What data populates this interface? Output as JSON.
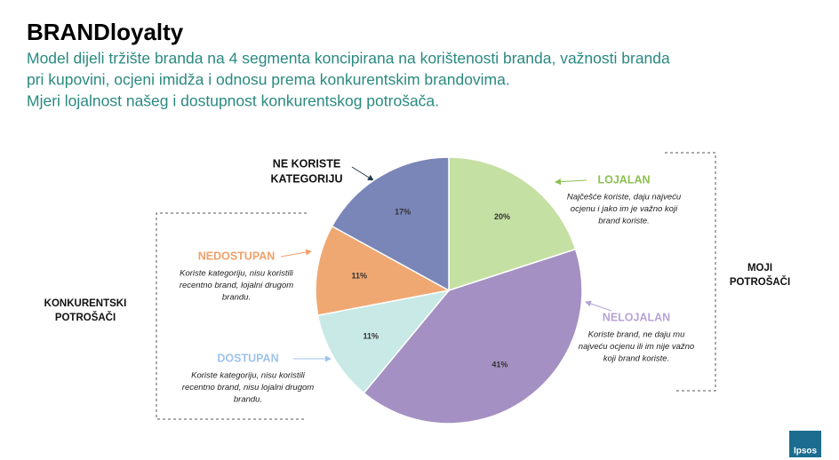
{
  "chart_data": {
    "type": "pie",
    "title": "BRANDloyalty",
    "subtitle": [
      "Model dijeli tržište branda na 4 segmenta koncipirana na korištenosti branda, važnosti branda",
      "pri kupovini, ocjeni imidža i odnosu prema konkurentskim brandovima.",
      "Mjeri lojalnost našeg i dostupnost konkurentskog potrošača."
    ],
    "categories": [
      [
        "LOJALAN"
      ],
      [
        "NELOJALAN"
      ],
      [
        "DOSTUPAN"
      ],
      [
        "NEDOSTUPAN"
      ],
      [
        "NE KORISTE",
        "KATEGORIJU"
      ]
    ],
    "values": [
      20,
      41,
      11,
      11,
      17
    ],
    "value_labels": [
      "20%",
      "41%",
      "11%",
      "11%",
      "17%"
    ],
    "colors": [
      "#c5e0a3",
      "#a490c2",
      "#c8e9e6",
      "#f0a873",
      "#7a86b8"
    ],
    "label_colors": [
      "#8cc152",
      "#b7a4d6",
      "#9ec3ec",
      "#f2a06a",
      "#111111"
    ],
    "descriptions": [
      [
        "Najčešće koriste, daju najveću",
        "ocjenu i jako im je važno koji",
        "brand koriste."
      ],
      [
        "Koriste brand, ne daju mu",
        "najveću ocjenu ili im nije važno",
        "koji brand koriste."
      ],
      [
        "Koriste kategoriju, nisu koristili",
        "recentno brand, nisu lojalni drugom",
        "brandu."
      ],
      [
        "Koriste kategoriju, nisu koristili",
        "recentno brand, lojalni drugom",
        "brandu."
      ],
      []
    ],
    "groups": [
      [
        "MOJI",
        "POTROŠAČI"
      ],
      [
        "KONKURENTSKI",
        "POTROŠAČI"
      ]
    ],
    "logo": "Ipsos"
  }
}
